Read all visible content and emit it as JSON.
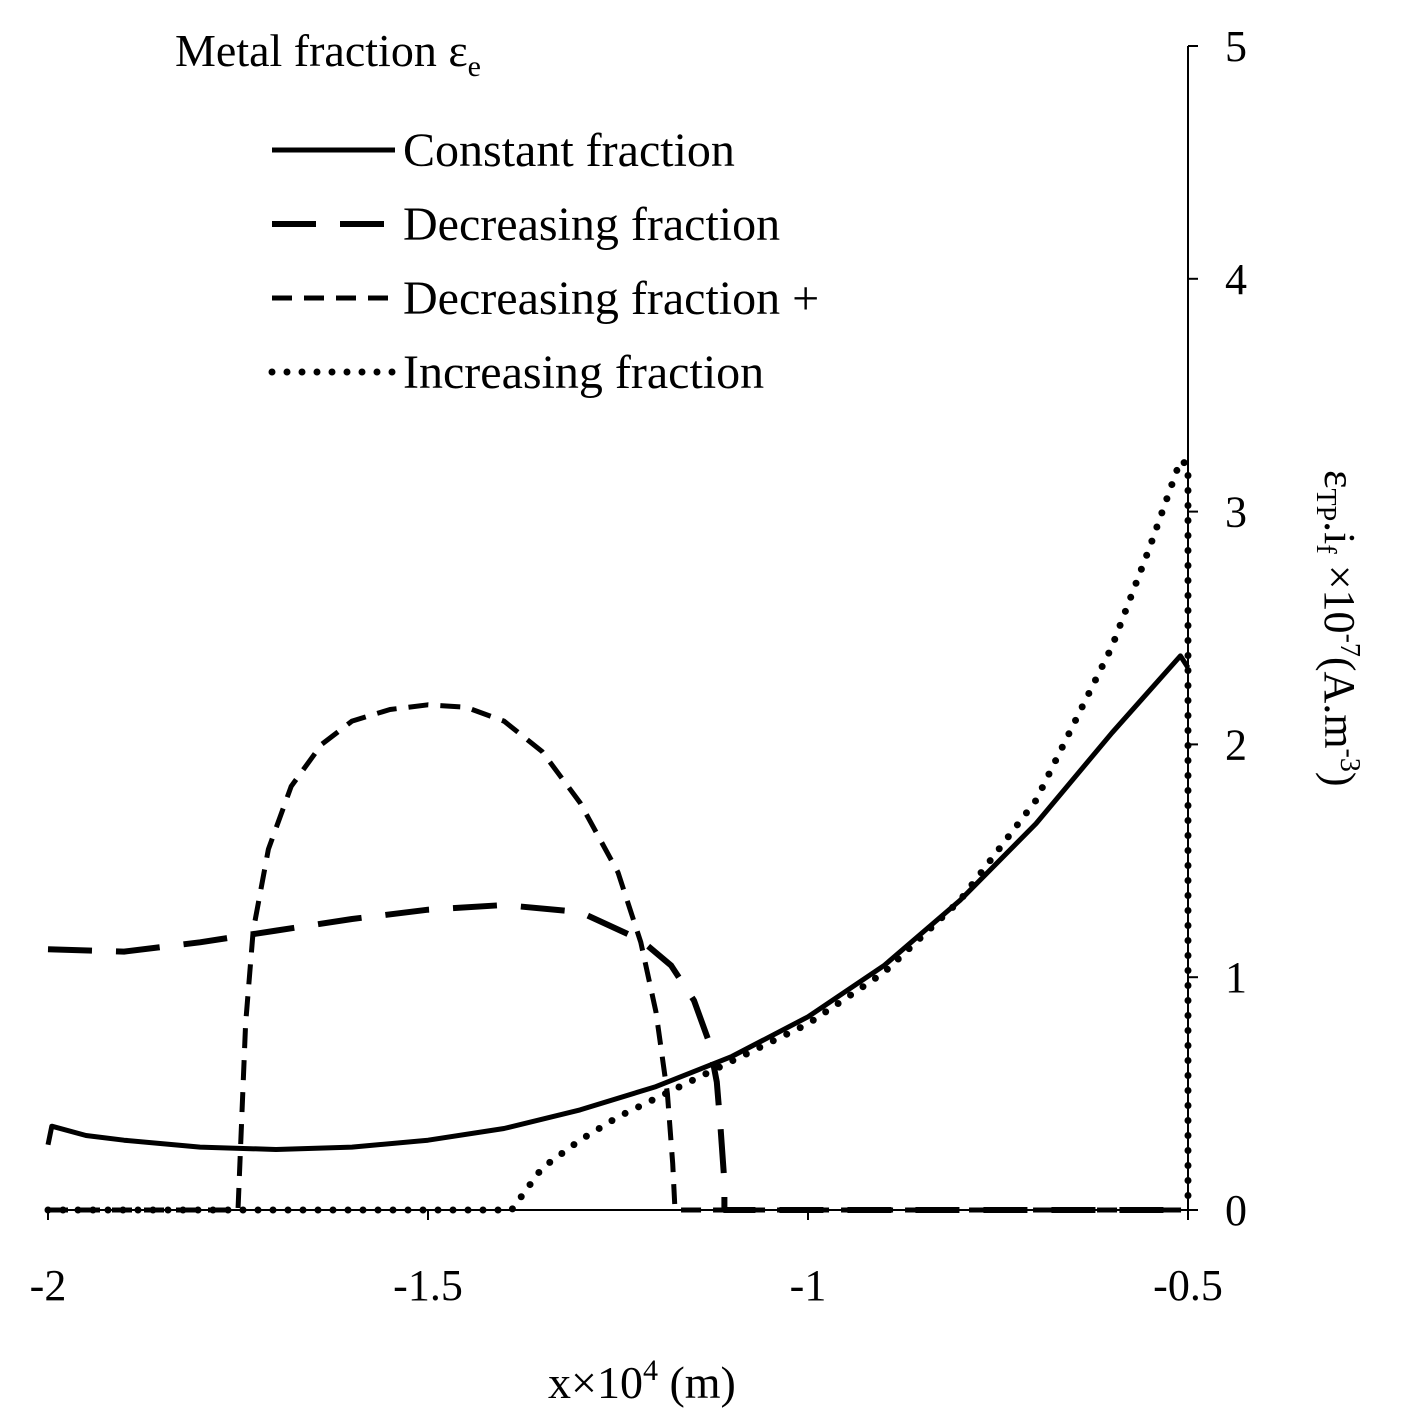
{
  "chart_data": {
    "type": "line",
    "legend_title": "Metal fraction",
    "legend_title_symbol": "ε",
    "legend_title_sub": "e",
    "legend_position": "top-left",
    "xlabel": "x×10",
    "xlabel_sup": "4",
    "xlabel_unit": " (m)",
    "ylabel": {
      "symbol": "ε",
      "symbol_sub": "TP",
      "mid": ".i",
      "mid_sub": "f",
      "times": " ×10",
      "times_sup": "-7",
      "unit": "(A.m",
      "unit_sup": "-3",
      "close": ")"
    },
    "y_axis_side": "right",
    "xlim": [
      -2,
      -0.5
    ],
    "ylim": [
      0,
      5
    ],
    "x_ticks": [
      -2,
      -1.5,
      -1,
      -0.5
    ],
    "x_tick_labels": [
      "-2",
      "-1.5",
      "-1",
      "-0.5"
    ],
    "y_ticks": [
      0,
      1,
      2,
      3,
      4,
      5
    ],
    "y_tick_labels": [
      "0",
      "1",
      "2",
      "3",
      "4",
      "5"
    ],
    "grid": false,
    "series": [
      {
        "name": "Constant fraction",
        "style": "solid",
        "points": [
          [
            -2.0,
            0.28
          ],
          [
            -1.995,
            0.36
          ],
          [
            -1.95,
            0.32
          ],
          [
            -1.9,
            0.3
          ],
          [
            -1.8,
            0.27
          ],
          [
            -1.7,
            0.26
          ],
          [
            -1.6,
            0.27
          ],
          [
            -1.5,
            0.3
          ],
          [
            -1.4,
            0.35
          ],
          [
            -1.3,
            0.43
          ],
          [
            -1.2,
            0.53
          ],
          [
            -1.1,
            0.66
          ],
          [
            -1.0,
            0.83
          ],
          [
            -0.9,
            1.05
          ],
          [
            -0.8,
            1.33
          ],
          [
            -0.7,
            1.66
          ],
          [
            -0.6,
            2.05
          ],
          [
            -0.51,
            2.38
          ],
          [
            -0.5,
            2.33
          ]
        ]
      },
      {
        "name": "Decreasing fraction",
        "style": "long-dash",
        "points": [
          [
            -2.0,
            1.12
          ],
          [
            -1.9,
            1.11
          ],
          [
            -1.8,
            1.15
          ],
          [
            -1.7,
            1.2
          ],
          [
            -1.6,
            1.25
          ],
          [
            -1.5,
            1.29
          ],
          [
            -1.4,
            1.31
          ],
          [
            -1.3,
            1.28
          ],
          [
            -1.22,
            1.16
          ],
          [
            -1.18,
            1.05
          ],
          [
            -1.15,
            0.9
          ],
          [
            -1.13,
            0.72
          ],
          [
            -1.12,
            0.55
          ],
          [
            -1.115,
            0.35
          ],
          [
            -1.11,
            0.12
          ],
          [
            -1.11,
            0.0
          ],
          [
            -0.5,
            0.0
          ]
        ]
      },
      {
        "name": "Decreasing fraction +",
        "style": "short-dash",
        "points": [
          [
            -2.0,
            0.0
          ],
          [
            -1.75,
            0.0
          ],
          [
            -1.745,
            0.4
          ],
          [
            -1.74,
            0.8
          ],
          [
            -1.73,
            1.2
          ],
          [
            -1.71,
            1.55
          ],
          [
            -1.68,
            1.82
          ],
          [
            -1.64,
            2.0
          ],
          [
            -1.6,
            2.1
          ],
          [
            -1.55,
            2.15
          ],
          [
            -1.5,
            2.17
          ],
          [
            -1.45,
            2.16
          ],
          [
            -1.4,
            2.1
          ],
          [
            -1.35,
            1.97
          ],
          [
            -1.3,
            1.75
          ],
          [
            -1.25,
            1.45
          ],
          [
            -1.22,
            1.15
          ],
          [
            -1.2,
            0.85
          ],
          [
            -1.185,
            0.5
          ],
          [
            -1.178,
            0.2
          ],
          [
            -1.175,
            0.0
          ],
          [
            -0.5,
            0.0
          ]
        ]
      },
      {
        "name": "Increasing fraction",
        "style": "dotted",
        "points": [
          [
            -2.0,
            0.0
          ],
          [
            -1.39,
            0.0
          ],
          [
            -1.35,
            0.18
          ],
          [
            -1.3,
            0.3
          ],
          [
            -1.25,
            0.4
          ],
          [
            -1.2,
            0.48
          ],
          [
            -1.15,
            0.56
          ],
          [
            -1.1,
            0.64
          ],
          [
            -1.0,
            0.8
          ],
          [
            -0.9,
            1.02
          ],
          [
            -0.8,
            1.33
          ],
          [
            -0.7,
            1.76
          ],
          [
            -0.6,
            2.42
          ],
          [
            -0.55,
            2.85
          ],
          [
            -0.51,
            3.22
          ],
          [
            -0.5,
            3.2
          ],
          [
            -0.5,
            2.0
          ],
          [
            -0.5,
            0.0
          ]
        ]
      }
    ]
  }
}
